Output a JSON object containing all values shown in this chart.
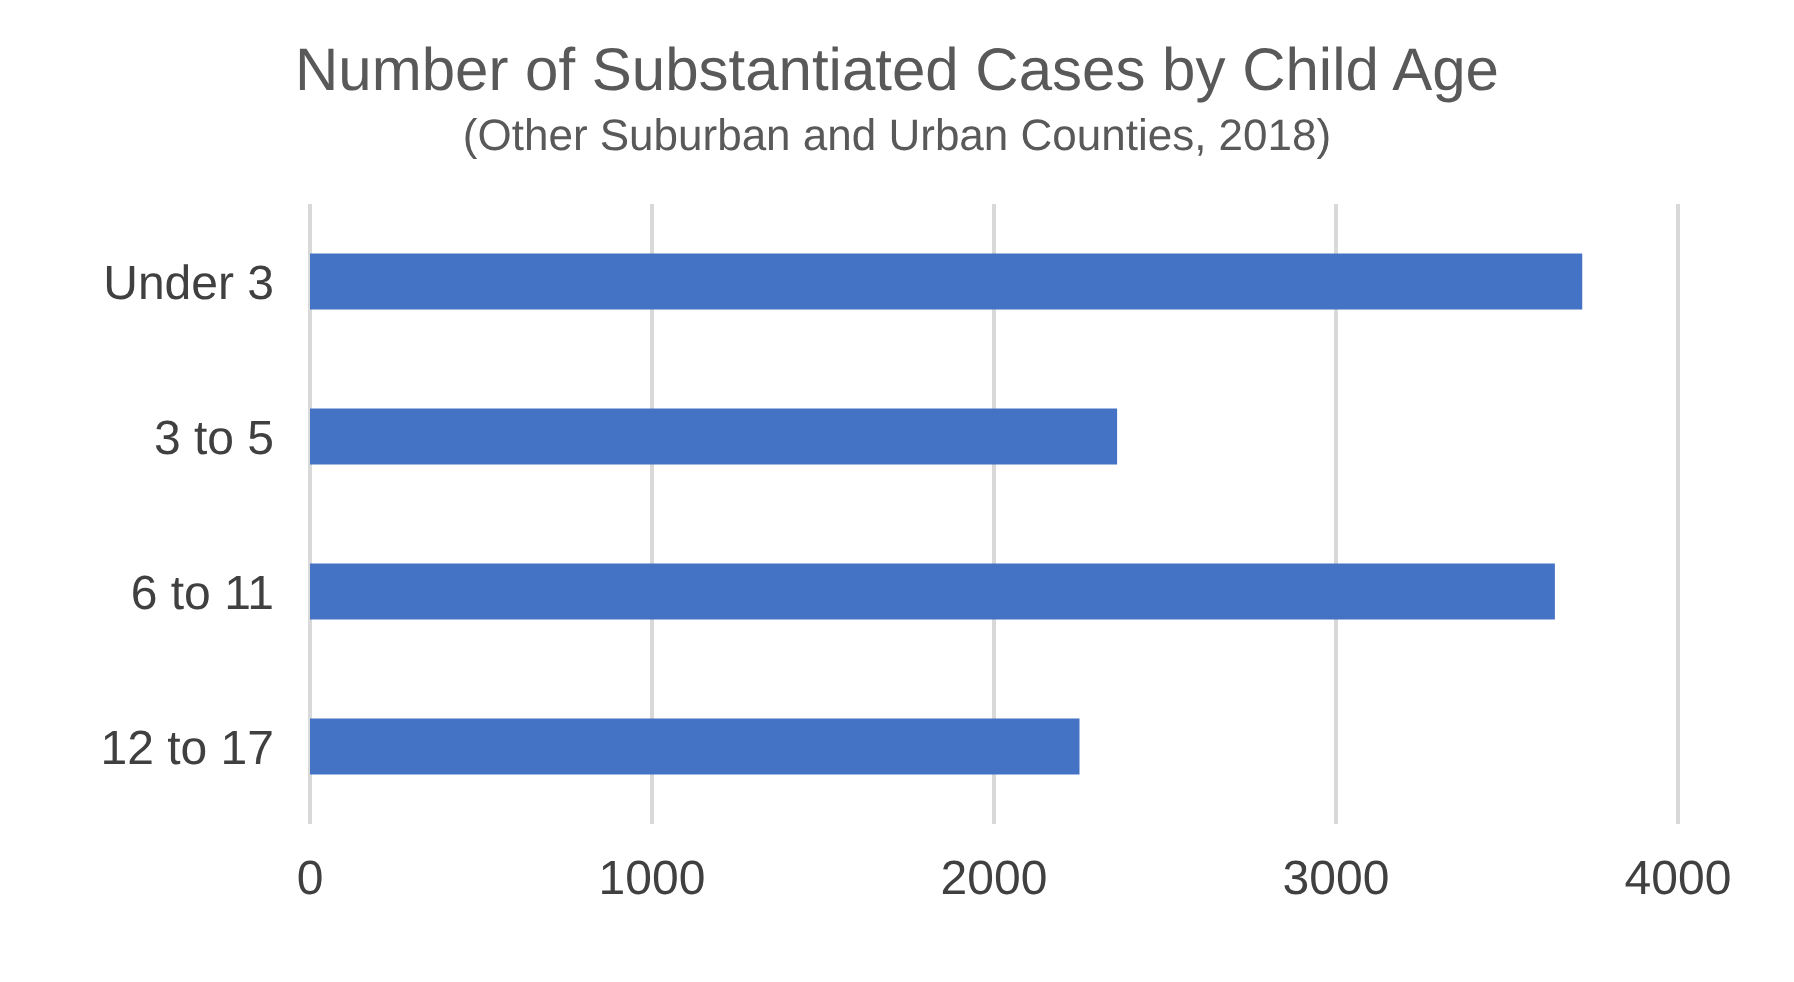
{
  "chart_data": {
    "type": "bar",
    "orientation": "horizontal",
    "title": "Number of Substantiated Cases by Child Age",
    "subtitle": "(Other Suburban and Urban Counties, 2018)",
    "categories": [
      "Under 3",
      "3 to 5",
      "6 to 11",
      "12 to 17"
    ],
    "values": [
      3720,
      2360,
      3640,
      2250
    ],
    "color": "#4472c4",
    "xlim": [
      0,
      4000
    ],
    "xticks": [
      0,
      1000,
      2000,
      3000,
      4000
    ],
    "grid": "x"
  }
}
